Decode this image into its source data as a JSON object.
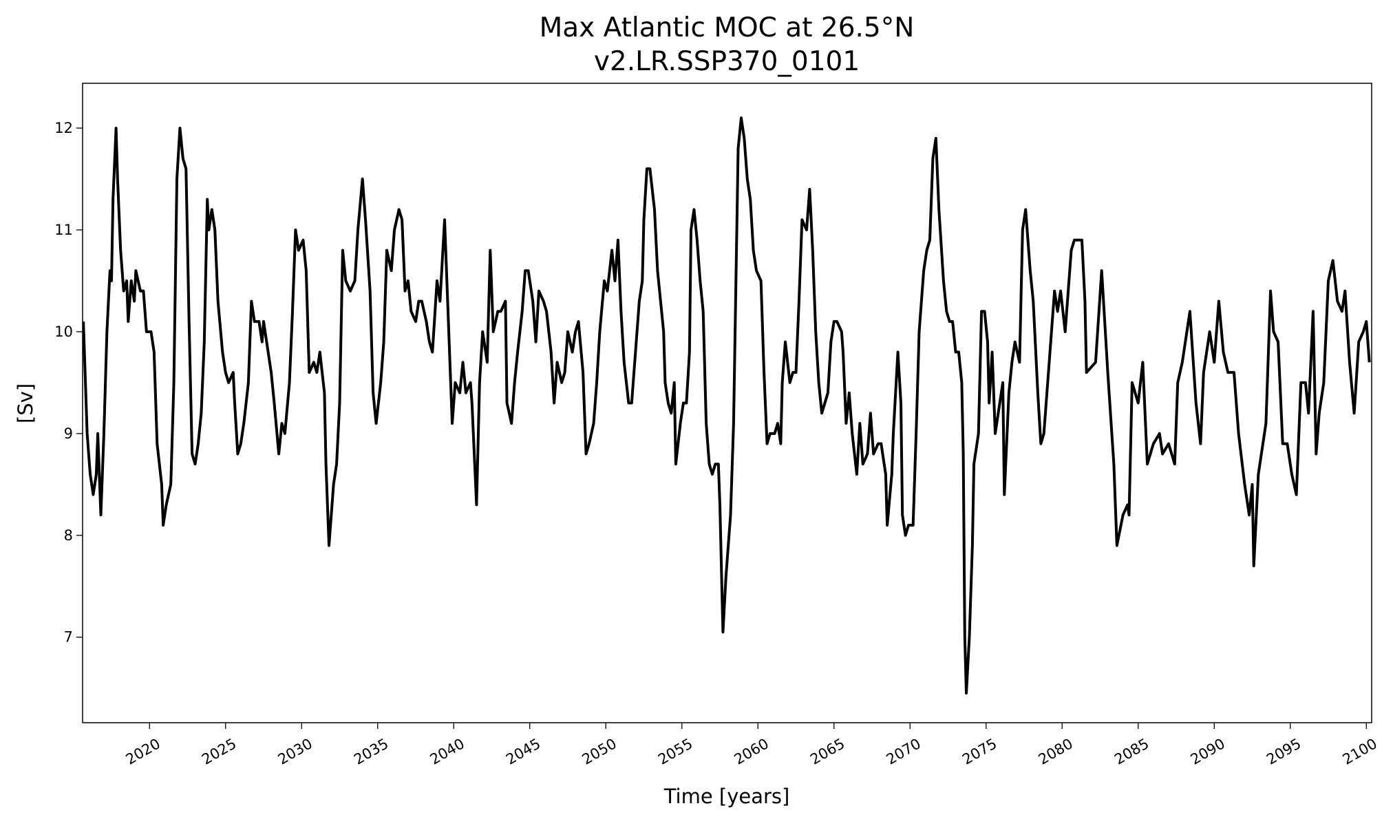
{
  "chart_data": {
    "type": "line",
    "title": "Max Atlantic MOC at 26.5°N",
    "subtitle": "v2.LR.SSP370_0101",
    "x_label": "Time [years]",
    "y_label": "[Sv]",
    "color": "#000000",
    "xlim": [
      2015.6,
      2100.35
    ],
    "ylim": [
      6.16,
      12.44
    ],
    "xticks": [
      2020,
      2025,
      2030,
      2035,
      2040,
      2045,
      2050,
      2055,
      2060,
      2065,
      2070,
      2075,
      2080,
      2085,
      2090,
      2095,
      2100
    ],
    "yticks": [
      7,
      8,
      9,
      10,
      11,
      12
    ],
    "x": [
      2015.65,
      2015.9,
      2016.1,
      2016.3,
      2016.5,
      2016.6,
      2016.8,
      2017.0,
      2017.2,
      2017.4,
      2017.5,
      2017.6,
      2017.8,
      2017.9,
      2018.1,
      2018.3,
      2018.5,
      2018.6,
      2018.8,
      2019.0,
      2019.1,
      2019.4,
      2019.6,
      2019.8,
      2020.1,
      2020.3,
      2020.5,
      2020.8,
      2020.9,
      2021.1,
      2021.4,
      2021.6,
      2021.8,
      2022.0,
      2022.2,
      2022.4,
      2022.6,
      2022.8,
      2023.0,
      2023.2,
      2023.4,
      2023.6,
      2023.8,
      2023.9,
      2024.1,
      2024.3,
      2024.5,
      2024.8,
      2025.0,
      2025.2,
      2025.5,
      2025.6,
      2025.8,
      2026.0,
      2026.2,
      2026.5,
      2026.7,
      2026.9,
      2027.2,
      2027.4,
      2027.5,
      2027.8,
      2028.0,
      2028.2,
      2028.5,
      2028.7,
      2028.9,
      2029.2,
      2029.4,
      2029.6,
      2029.8,
      2030.1,
      2030.3,
      2030.5,
      2030.8,
      2031.0,
      2031.2,
      2031.5,
      2031.6,
      2031.8,
      2032.1,
      2032.3,
      2032.5,
      2032.7,
      2032.9,
      2033.2,
      2033.5,
      2033.7,
      2034.0,
      2034.2,
      2034.5,
      2034.7,
      2034.9,
      2035.2,
      2035.4,
      2035.6,
      2035.9,
      2036.1,
      2036.4,
      2036.6,
      2036.8,
      2037.0,
      2037.2,
      2037.5,
      2037.7,
      2037.9,
      2038.2,
      2038.4,
      2038.6,
      2038.9,
      2039.1,
      2039.4,
      2039.6,
      2039.8,
      2039.9,
      2040.1,
      2040.4,
      2040.6,
      2040.8,
      2041.1,
      2041.2,
      2041.5,
      2041.7,
      2041.9,
      2042.2,
      2042.4,
      2042.6,
      2042.9,
      2043.1,
      2043.4,
      2043.5,
      2043.8,
      2044.0,
      2044.2,
      2044.5,
      2044.7,
      2044.9,
      2045.2,
      2045.4,
      2045.6,
      2045.9,
      2046.1,
      2046.4,
      2046.6,
      2046.8,
      2047.1,
      2047.3,
      2047.5,
      2047.8,
      2048.0,
      2048.2,
      2048.5,
      2048.7,
      2048.9,
      2049.2,
      2049.4,
      2049.6,
      2049.9,
      2050.1,
      2050.4,
      2050.6,
      2050.8,
      2051.0,
      2051.2,
      2051.5,
      2051.7,
      2051.9,
      2052.2,
      2052.4,
      2052.5,
      2052.7,
      2052.9,
      2053.2,
      2053.4,
      2053.6,
      2053.8,
      2053.9,
      2054.1,
      2054.3,
      2054.5,
      2054.6,
      2054.9,
      2055.1,
      2055.3,
      2055.5,
      2055.6,
      2055.8,
      2056.0,
      2056.2,
      2056.4,
      2056.6,
      2056.8,
      2057.0,
      2057.2,
      2057.4,
      2057.5,
      2057.7,
      2057.9,
      2058.2,
      2058.4,
      2058.5,
      2058.7,
      2058.9,
      2059.1,
      2059.3,
      2059.5,
      2059.7,
      2059.9,
      2060.2,
      2060.4,
      2060.6,
      2060.8,
      2061.1,
      2061.3,
      2061.5,
      2061.6,
      2061.8,
      2062.1,
      2062.3,
      2062.5,
      2062.7,
      2062.9,
      2063.2,
      2063.4,
      2063.6,
      2063.8,
      2064.0,
      2064.2,
      2064.4,
      2064.6,
      2064.8,
      2065.0,
      2065.2,
      2065.5,
      2065.6,
      2065.8,
      2066.0,
      2066.2,
      2066.5,
      2066.7,
      2066.9,
      2067.2,
      2067.4,
      2067.6,
      2067.9,
      2068.1,
      2068.4,
      2068.5,
      2068.8,
      2068.9,
      2069.2,
      2069.4,
      2069.5,
      2069.7,
      2069.9,
      2070.2,
      2070.4,
      2070.6,
      2070.9,
      2071.1,
      2071.3,
      2071.5,
      2071.7,
      2071.9,
      2072.2,
      2072.4,
      2072.6,
      2072.8,
      2073.0,
      2073.2,
      2073.4,
      2073.5,
      2073.6,
      2073.7,
      2073.9,
      2074.1,
      2074.2,
      2074.5,
      2074.7,
      2074.9,
      2075.1,
      2075.2,
      2075.4,
      2075.6,
      2075.8,
      2076.1,
      2076.2,
      2076.5,
      2076.7,
      2076.9,
      2077.2,
      2077.4,
      2077.6,
      2077.9,
      2078.1,
      2078.4,
      2078.6,
      2078.8,
      2079.1,
      2079.3,
      2079.5,
      2079.7,
      2079.9,
      2080.2,
      2080.4,
      2080.6,
      2080.8,
      2081.1,
      2081.3,
      2081.5,
      2081.6,
      2082.2,
      2082.6,
      2083.0,
      2083.4,
      2083.6,
      2084.0,
      2084.3,
      2084.4,
      2084.6,
      2085.0,
      2085.3,
      2085.6,
      2086.0,
      2086.4,
      2086.6,
      2087.0,
      2087.4,
      2087.6,
      2087.9,
      2088.4,
      2088.8,
      2089.1,
      2089.3,
      2089.7,
      2090.0,
      2090.3,
      2090.6,
      2090.9,
      2091.3,
      2091.6,
      2092.0,
      2092.3,
      2092.5,
      2092.6,
      2092.9,
      2093.1,
      2093.4,
      2093.7,
      2093.9,
      2094.2,
      2094.5,
      2094.8,
      2095.1,
      2095.4,
      2095.7,
      2096.0,
      2096.2,
      2096.5,
      2096.7,
      2096.9,
      2097.2,
      2097.5,
      2097.8,
      2098.1,
      2098.4,
      2098.6,
      2098.9,
      2099.2,
      2099.5,
      2099.8,
      2100.0,
      2100.2
    ],
    "values": [
      10.1,
      9.0,
      8.6,
      8.4,
      8.6,
      9.0,
      8.2,
      9.0,
      10.0,
      10.6,
      10.5,
      11.3,
      12.0,
      11.5,
      10.8,
      10.4,
      10.5,
      10.1,
      10.5,
      10.3,
      10.6,
      10.4,
      10.4,
      10.0,
      10.0,
      9.8,
      8.9,
      8.5,
      8.1,
      8.3,
      8.5,
      9.5,
      11.5,
      12.0,
      11.7,
      11.6,
      10.1,
      8.8,
      8.7,
      8.9,
      9.2,
      9.9,
      11.3,
      11.0,
      11.2,
      11.0,
      10.3,
      9.8,
      9.6,
      9.5,
      9.6,
      9.3,
      8.8,
      8.9,
      9.1,
      9.5,
      10.3,
      10.1,
      10.1,
      9.9,
      10.1,
      9.8,
      9.6,
      9.3,
      8.8,
      9.1,
      9.0,
      9.5,
      10.2,
      11.0,
      10.8,
      10.9,
      10.6,
      9.6,
      9.7,
      9.6,
      9.8,
      9.4,
      8.7,
      7.9,
      8.5,
      8.7,
      9.3,
      10.8,
      10.5,
      10.4,
      10.5,
      11.0,
      11.5,
      11.1,
      10.4,
      9.4,
      9.1,
      9.5,
      9.9,
      10.8,
      10.6,
      11.0,
      11.2,
      11.1,
      10.4,
      10.5,
      10.2,
      10.1,
      10.3,
      10.3,
      10.1,
      9.9,
      9.8,
      10.5,
      10.3,
      11.1,
      10.3,
      9.5,
      9.1,
      9.5,
      9.4,
      9.7,
      9.4,
      9.5,
      9.3,
      8.3,
      9.5,
      10.0,
      9.7,
      10.8,
      10.0,
      10.2,
      10.2,
      10.3,
      9.3,
      9.1,
      9.5,
      9.8,
      10.2,
      10.6,
      10.6,
      10.3,
      9.9,
      10.4,
      10.3,
      10.2,
      9.8,
      9.3,
      9.7,
      9.5,
      9.6,
      10.0,
      9.8,
      10.0,
      10.1,
      9.6,
      8.8,
      8.9,
      9.1,
      9.5,
      10.0,
      10.5,
      10.4,
      10.8,
      10.5,
      10.9,
      10.2,
      9.7,
      9.3,
      9.3,
      9.7,
      10.3,
      10.5,
      11.1,
      11.6,
      11.6,
      11.2,
      10.6,
      10.3,
      10.0,
      9.5,
      9.3,
      9.2,
      9.5,
      8.7,
      9.1,
      9.3,
      9.3,
      9.8,
      11.0,
      11.2,
      10.9,
      10.5,
      10.2,
      9.1,
      8.7,
      8.6,
      8.7,
      8.7,
      8.3,
      7.05,
      7.6,
      8.2,
      9.1,
      10.0,
      11.8,
      12.1,
      11.9,
      11.5,
      11.3,
      10.8,
      10.6,
      10.5,
      9.6,
      8.9,
      9.0,
      9.0,
      9.1,
      8.9,
      9.5,
      9.9,
      9.5,
      9.6,
      9.6,
      10.3,
      11.1,
      11.0,
      11.4,
      10.8,
      10.0,
      9.5,
      9.2,
      9.3,
      9.4,
      9.9,
      10.1,
      10.1,
      10.0,
      9.8,
      9.1,
      9.4,
      9.0,
      8.6,
      9.1,
      8.7,
      8.8,
      9.2,
      8.8,
      8.9,
      8.9,
      8.6,
      8.1,
      8.6,
      9.0,
      9.8,
      9.3,
      8.2,
      8.0,
      8.1,
      8.1,
      9.0,
      10.0,
      10.6,
      10.8,
      10.9,
      11.7,
      11.9,
      11.2,
      10.5,
      10.2,
      10.1,
      10.1,
      9.8,
      9.8,
      9.5,
      8.8,
      7.0,
      6.45,
      7.0,
      7.9,
      8.7,
      9.0,
      10.2,
      10.2,
      9.9,
      9.3,
      9.8,
      9.0,
      9.2,
      9.5,
      8.4,
      9.4,
      9.7,
      9.9,
      9.7,
      11.0,
      11.2,
      10.6,
      10.3,
      9.4,
      8.9,
      9.0,
      9.6,
      10.0,
      10.4,
      10.2,
      10.4,
      10.0,
      10.4,
      10.8,
      10.9,
      10.9,
      10.9,
      10.3,
      9.6,
      9.7,
      10.6,
      9.6,
      8.7,
      7.9,
      8.2,
      8.3,
      8.2,
      9.5,
      9.3,
      9.7,
      8.7,
      8.9,
      9.0,
      8.8,
      8.9,
      8.7,
      9.5,
      9.7,
      10.2,
      9.3,
      8.9,
      9.6,
      10.0,
      9.7,
      10.3,
      9.8,
      9.6,
      9.6,
      9.0,
      8.5,
      8.2,
      8.5,
      7.7,
      8.6,
      8.8,
      9.1,
      10.4,
      10.0,
      9.9,
      8.9,
      8.9,
      8.6,
      8.4,
      9.5,
      9.5,
      9.2,
      10.2,
      8.8,
      9.2,
      9.5,
      10.5,
      10.7,
      10.3,
      10.2,
      10.4,
      9.7,
      9.2,
      9.9,
      10.0,
      10.1,
      9.7
    ]
  }
}
